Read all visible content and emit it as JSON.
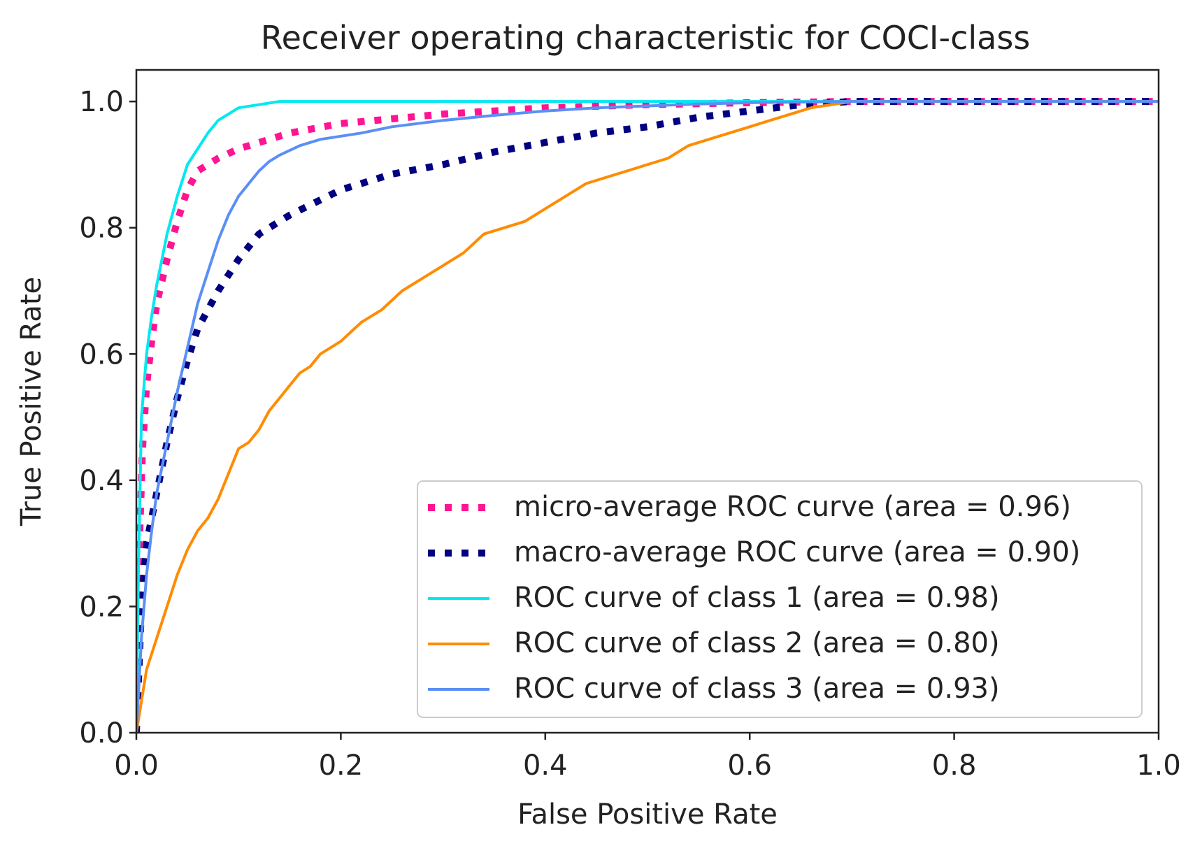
{
  "chart_data": {
    "type": "line",
    "title": "Receiver operating characteristic for COCI-class",
    "xlabel": "False Positive Rate",
    "ylabel": "True Positive Rate",
    "xlim": [
      0.0,
      1.0
    ],
    "ylim": [
      0.0,
      1.05
    ],
    "xticks": [
      "0.0",
      "0.2",
      "0.4",
      "0.6",
      "0.8",
      "1.0"
    ],
    "yticks": [
      "0.0",
      "0.2",
      "0.4",
      "0.6",
      "0.8",
      "1.0"
    ],
    "grid": false,
    "legend_position": "lower-right",
    "series": [
      {
        "name": "micro-average ROC curve (area = 0.96)",
        "color": "#ff1493",
        "style": "dotted",
        "x": [
          0.0,
          0.003,
          0.006,
          0.01,
          0.015,
          0.02,
          0.03,
          0.04,
          0.05,
          0.06,
          0.08,
          0.1,
          0.15,
          0.2,
          0.3,
          0.4,
          0.5,
          0.6,
          0.7,
          0.8,
          0.9,
          1.0
        ],
        "y": [
          0.0,
          0.3,
          0.45,
          0.55,
          0.62,
          0.68,
          0.75,
          0.81,
          0.86,
          0.89,
          0.91,
          0.925,
          0.95,
          0.965,
          0.98,
          0.99,
          0.995,
          0.998,
          1.0,
          1.0,
          1.0,
          1.0
        ]
      },
      {
        "name": "macro-average ROC curve (area = 0.90)",
        "color": "#000080",
        "style": "dotted",
        "x": [
          0.0,
          0.005,
          0.01,
          0.02,
          0.03,
          0.04,
          0.05,
          0.06,
          0.08,
          0.1,
          0.12,
          0.15,
          0.2,
          0.25,
          0.3,
          0.35,
          0.4,
          0.45,
          0.5,
          0.55,
          0.6,
          0.65,
          0.7,
          0.8,
          0.9,
          1.0
        ],
        "y": [
          0.0,
          0.2,
          0.3,
          0.38,
          0.46,
          0.53,
          0.59,
          0.64,
          0.7,
          0.75,
          0.79,
          0.82,
          0.86,
          0.885,
          0.9,
          0.92,
          0.935,
          0.95,
          0.96,
          0.975,
          0.985,
          0.995,
          1.0,
          1.0,
          1.0,
          1.0
        ]
      },
      {
        "name": "ROC curve of class 1 (area = 0.98)",
        "color": "#00e8f0",
        "style": "solid",
        "x": [
          0.0,
          0.002,
          0.005,
          0.01,
          0.015,
          0.02,
          0.025,
          0.03,
          0.035,
          0.04,
          0.045,
          0.05,
          0.06,
          0.07,
          0.08,
          0.09,
          0.1,
          0.12,
          0.14,
          0.16,
          0.2,
          0.3,
          0.5,
          0.7,
          1.0
        ],
        "y": [
          0.0,
          0.25,
          0.5,
          0.6,
          0.66,
          0.71,
          0.75,
          0.79,
          0.82,
          0.85,
          0.875,
          0.9,
          0.925,
          0.95,
          0.97,
          0.98,
          0.99,
          0.995,
          1.0,
          1.0,
          1.0,
          1.0,
          1.0,
          1.0,
          1.0
        ]
      },
      {
        "name": "ROC curve of class 2 (area = 0.80)",
        "color": "#ff8c00",
        "style": "solid",
        "x": [
          0.0,
          0.005,
          0.01,
          0.02,
          0.03,
          0.04,
          0.05,
          0.06,
          0.07,
          0.08,
          0.09,
          0.1,
          0.11,
          0.12,
          0.13,
          0.14,
          0.15,
          0.16,
          0.17,
          0.18,
          0.2,
          0.22,
          0.24,
          0.26,
          0.28,
          0.3,
          0.32,
          0.34,
          0.36,
          0.38,
          0.4,
          0.42,
          0.44,
          0.46,
          0.48,
          0.5,
          0.52,
          0.54,
          0.56,
          0.58,
          0.6,
          0.62,
          0.64,
          0.66,
          0.68,
          0.7,
          0.75,
          0.8,
          1.0
        ],
        "y": [
          0.0,
          0.05,
          0.1,
          0.15,
          0.2,
          0.25,
          0.29,
          0.32,
          0.34,
          0.37,
          0.41,
          0.45,
          0.46,
          0.48,
          0.51,
          0.53,
          0.55,
          0.57,
          0.58,
          0.6,
          0.62,
          0.65,
          0.67,
          0.7,
          0.72,
          0.74,
          0.76,
          0.79,
          0.8,
          0.81,
          0.83,
          0.85,
          0.87,
          0.88,
          0.89,
          0.9,
          0.91,
          0.93,
          0.94,
          0.95,
          0.96,
          0.97,
          0.98,
          0.99,
          0.995,
          1.0,
          1.0,
          1.0,
          1.0
        ]
      },
      {
        "name": "ROC curve of class 3 (area = 0.93)",
        "color": "#5b8ff5",
        "style": "solid",
        "x": [
          0.0,
          0.005,
          0.01,
          0.015,
          0.02,
          0.03,
          0.04,
          0.05,
          0.06,
          0.07,
          0.08,
          0.09,
          0.1,
          0.11,
          0.12,
          0.13,
          0.14,
          0.16,
          0.18,
          0.2,
          0.22,
          0.25,
          0.3,
          0.35,
          0.4,
          0.45,
          0.5,
          0.55,
          0.6,
          0.65,
          0.7,
          0.8,
          1.0
        ],
        "y": [
          0.0,
          0.15,
          0.25,
          0.32,
          0.38,
          0.46,
          0.54,
          0.61,
          0.68,
          0.73,
          0.78,
          0.82,
          0.85,
          0.87,
          0.89,
          0.905,
          0.915,
          0.93,
          0.94,
          0.945,
          0.95,
          0.96,
          0.97,
          0.978,
          0.985,
          0.99,
          0.993,
          0.996,
          0.998,
          0.999,
          1.0,
          1.0,
          1.0
        ]
      }
    ]
  }
}
